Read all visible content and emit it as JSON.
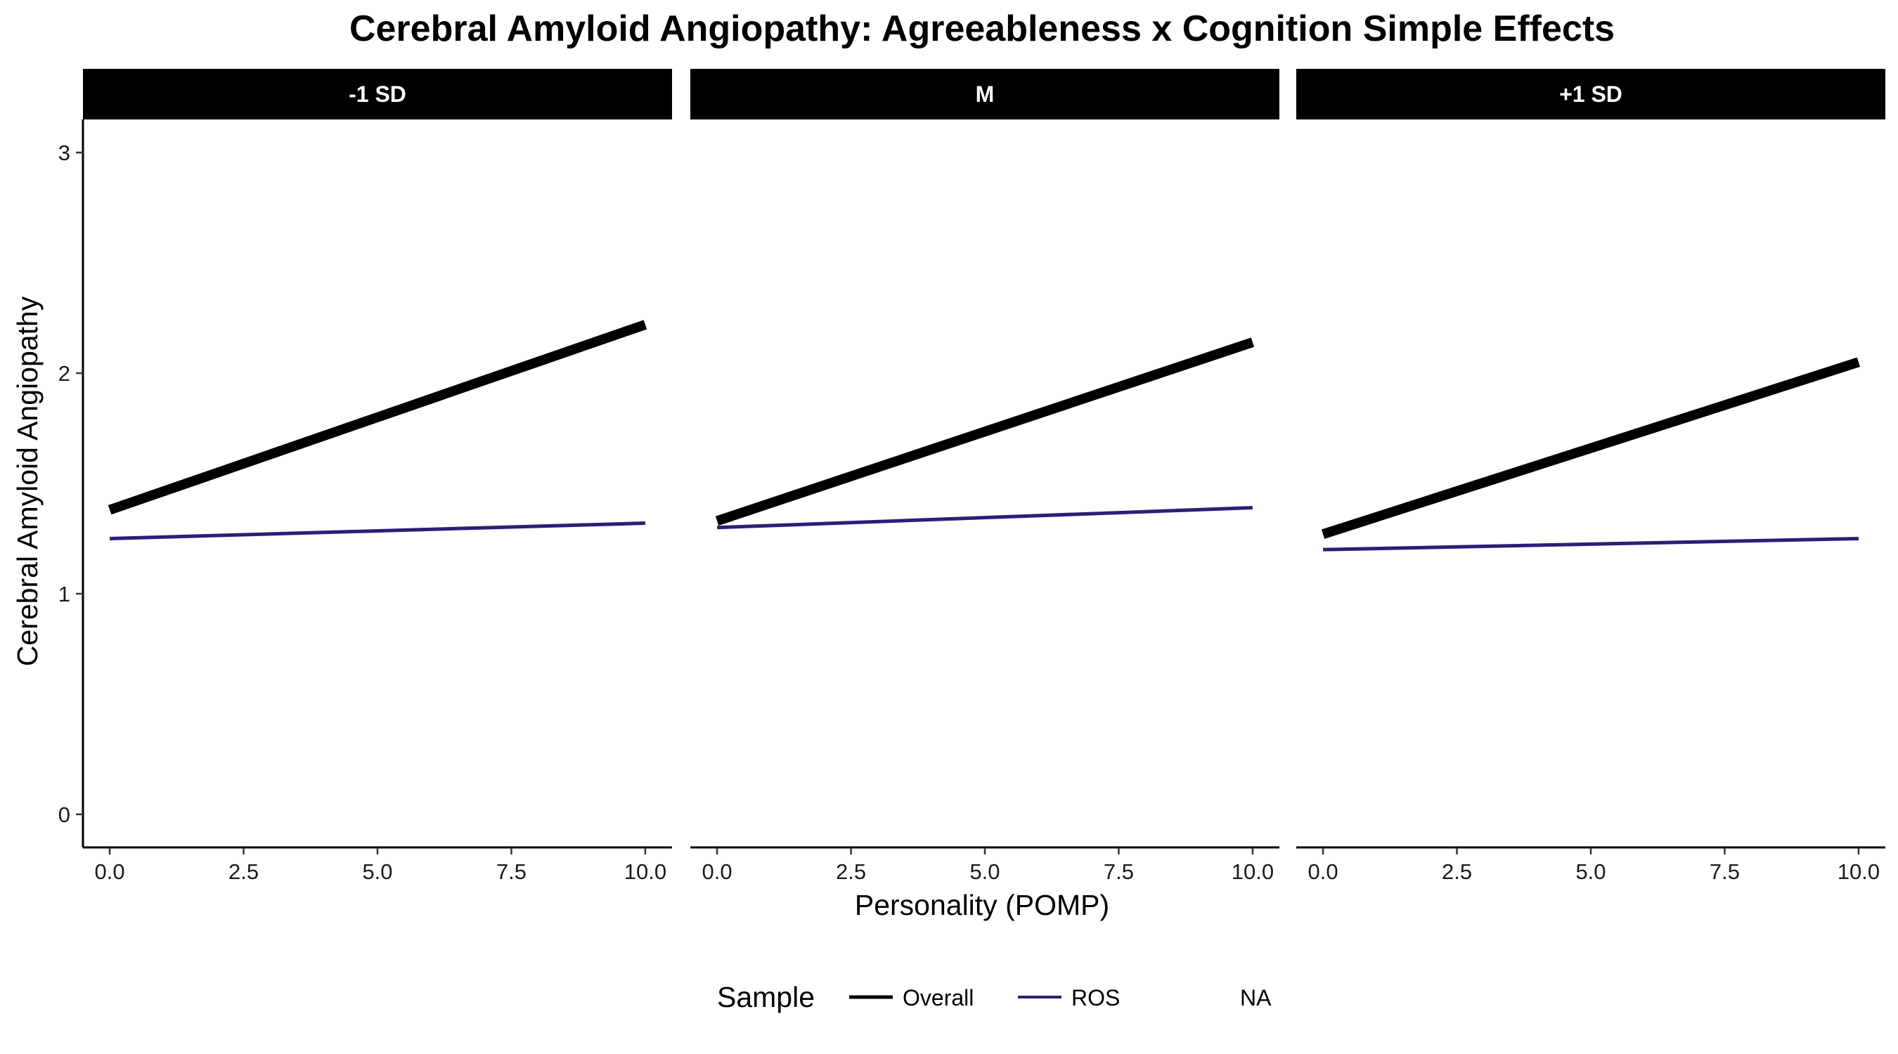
{
  "chart_data": {
    "type": "line",
    "title": "Cerebral Amyloid Angiopathy: Agreeableness x Cognition Simple Effects",
    "xlabel": "Personality (POMP)",
    "ylabel": "Cerebral Amyloid Angiopathy",
    "xlim": [
      -0.5,
      10.5
    ],
    "ylim": [
      -0.15,
      3.15
    ],
    "x_ticks": [
      0,
      2.5,
      5,
      7.5,
      10
    ],
    "x_tick_labels": [
      "0.0",
      "2.5",
      "5.0",
      "7.5",
      "10.0"
    ],
    "y_ticks": [
      0,
      1,
      2,
      3
    ],
    "y_tick_labels": [
      "0",
      "1",
      "2",
      "3"
    ],
    "grid": false,
    "legend": {
      "title": "Sample",
      "position": "bottom",
      "entries": [
        {
          "label": "Overall",
          "color": "#000000",
          "kind": "thick"
        },
        {
          "label": "ROS",
          "color": "#2d1e78",
          "kind": "thin"
        },
        {
          "label": "NA",
          "color": null,
          "kind": "none"
        }
      ]
    },
    "panels": [
      {
        "label": "-1 SD",
        "series": [
          {
            "name": "Overall",
            "color": "#000000",
            "kind": "thick",
            "x": [
              0,
              10
            ],
            "y": [
              1.38,
              2.22
            ]
          },
          {
            "name": "ROS",
            "color": "#2d1e78",
            "kind": "thin",
            "x": [
              0,
              10
            ],
            "y": [
              1.25,
              1.32
            ]
          }
        ]
      },
      {
        "label": "M",
        "series": [
          {
            "name": "Overall",
            "color": "#000000",
            "kind": "thick",
            "x": [
              0,
              10
            ],
            "y": [
              1.33,
              2.14
            ]
          },
          {
            "name": "ROS",
            "color": "#2d1e78",
            "kind": "thin",
            "x": [
              0,
              10
            ],
            "y": [
              1.3,
              1.39
            ]
          }
        ]
      },
      {
        "label": "+1 SD",
        "series": [
          {
            "name": "Overall",
            "color": "#000000",
            "kind": "thick",
            "x": [
              0,
              10
            ],
            "y": [
              1.27,
              2.05
            ]
          },
          {
            "name": "ROS",
            "color": "#2d1e78",
            "kind": "thin",
            "x": [
              0,
              10
            ],
            "y": [
              1.2,
              1.25
            ]
          }
        ]
      }
    ]
  }
}
